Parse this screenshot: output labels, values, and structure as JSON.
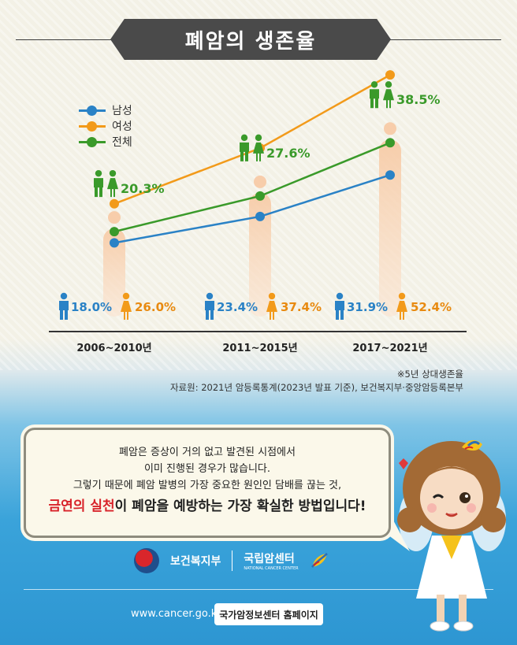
{
  "title": "폐암의 생존율",
  "legend": {
    "male": "남성",
    "female": "여성",
    "total": "전체"
  },
  "colors": {
    "male": "#2a82c6",
    "female": "#f29a1a",
    "total": "#3a9a2a",
    "banner": "#4a4a4a",
    "cta_red": "#d8222a"
  },
  "chart_data": {
    "type": "line",
    "title": "",
    "xlabel": "",
    "ylabel": "",
    "categories": [
      "2006~2010년",
      "2011~2015년",
      "2017~2021년"
    ],
    "series": [
      {
        "name": "남성",
        "values": [
          18.0,
          23.4,
          31.9
        ],
        "labels": [
          "18.0%",
          "23.4%",
          "31.9%"
        ]
      },
      {
        "name": "여성",
        "values": [
          26.0,
          37.4,
          52.4
        ],
        "labels": [
          "26.0%",
          "37.4%",
          "52.4%"
        ]
      },
      {
        "name": "전체",
        "values": [
          20.3,
          27.6,
          38.5
        ],
        "labels": [
          "20.3%",
          "27.6%",
          "38.5%"
        ]
      }
    ],
    "ylim": [
      0,
      60
    ],
    "grid": false,
    "legend_position": "top-left"
  },
  "notes": {
    "footnote": "※5년 상대생존율",
    "source": "자료원: 2021년 암등록통계(2023년 발표 기준), 보건복지부·중앙암등록본부"
  },
  "message": {
    "line1": "폐암은 증상이 거의 없고 발견된 시점에서",
    "line2": "이미 진행된 경우가 많습니다.",
    "line3": "그렇기 때문에 폐암 발병의 가장 중요한 원인인 담배를 끊는 것,",
    "cta_red": "금연의 실천",
    "cta_rest": "이 폐암을 예방하는 가장 확실한 방법입니다!"
  },
  "logos": {
    "ministry": "보건복지부",
    "center": "국립암센터",
    "center_sub": "NATIONAL CANCER CENTER"
  },
  "footer": {
    "url": "www.cancer.go.kr",
    "button": "국가암정보센터 홈페이지"
  }
}
